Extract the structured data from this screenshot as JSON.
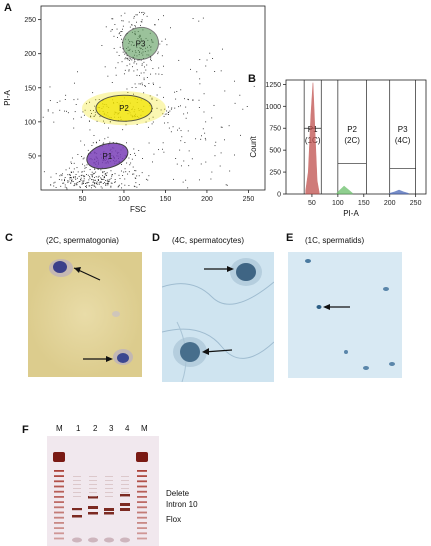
{
  "panels": {
    "A": {
      "letter": "A",
      "type": "scatter",
      "xlabel": "FSC",
      "ylabel": "PI-A",
      "x_ticks": [
        "50",
        "100",
        "150",
        "200",
        "250"
      ],
      "y_ticks": [
        "50",
        "100",
        "150",
        "200",
        "250"
      ],
      "gates": [
        {
          "label": "P1",
          "color": "#7a3fb8"
        },
        {
          "label": "P2",
          "color": "#f2e500"
        },
        {
          "label": "P3",
          "color": "#5a9a5a"
        }
      ]
    },
    "B": {
      "letter": "B",
      "type": "histogram",
      "xlabel": "PI-A",
      "ylabel": "Count",
      "x_ticks": [
        "50",
        "100",
        "150",
        "200",
        "250"
      ],
      "y_ticks": [
        "0",
        "250",
        "500",
        "750",
        "1000",
        "1250"
      ],
      "gates": [
        {
          "label": "P1",
          "sub": "(1C)",
          "color": "#c0504d"
        },
        {
          "label": "P2",
          "sub": "(2C)",
          "color": "#6abf6a"
        },
        {
          "label": "P3",
          "sub": "(4C)",
          "color": "#4a68b8"
        }
      ]
    },
    "C": {
      "letter": "C",
      "caption": "(2C, spermatogonia)"
    },
    "D": {
      "letter": "D",
      "caption": "(4C, spermatocytes)"
    },
    "E": {
      "letter": "E",
      "caption": "(1C, spermatids)"
    },
    "F": {
      "letter": "F",
      "lanes": [
        "M",
        "1",
        "2",
        "3",
        "4",
        "M"
      ],
      "band_labels": [
        "Delete",
        "Intron 10",
        "Flox"
      ]
    }
  },
  "chart_data": [
    {
      "type": "scatter",
      "title": "",
      "xlabel": "FSC",
      "ylabel": "PI-A",
      "xlim": [
        0,
        270
      ],
      "ylim": [
        0,
        270
      ],
      "gates": [
        {
          "name": "P1",
          "center": [
            80,
            50
          ]
        },
        {
          "name": "P2",
          "center": [
            100,
            120
          ]
        },
        {
          "name": "P3",
          "center": [
            120,
            215
          ]
        }
      ]
    },
    {
      "type": "histogram",
      "title": "",
      "xlabel": "PI-A",
      "ylabel": "Count",
      "xlim": [
        0,
        270
      ],
      "ylim": [
        0,
        1300
      ],
      "series": [
        {
          "name": "P1 (1C)",
          "x": [
            38,
            43,
            48,
            52,
            56,
            60,
            64
          ],
          "values": [
            40,
            250,
            900,
            1270,
            700,
            150,
            20
          ]
        },
        {
          "name": "P2 (2C)",
          "x": [
            98,
            105,
            112,
            120,
            128
          ],
          "values": [
            10,
            50,
            90,
            50,
            10
          ]
        },
        {
          "name": "P3 (4C)",
          "x": [
            200,
            210,
            218,
            226,
            236
          ],
          "values": [
            8,
            25,
            45,
            25,
            8
          ]
        }
      ]
    }
  ]
}
